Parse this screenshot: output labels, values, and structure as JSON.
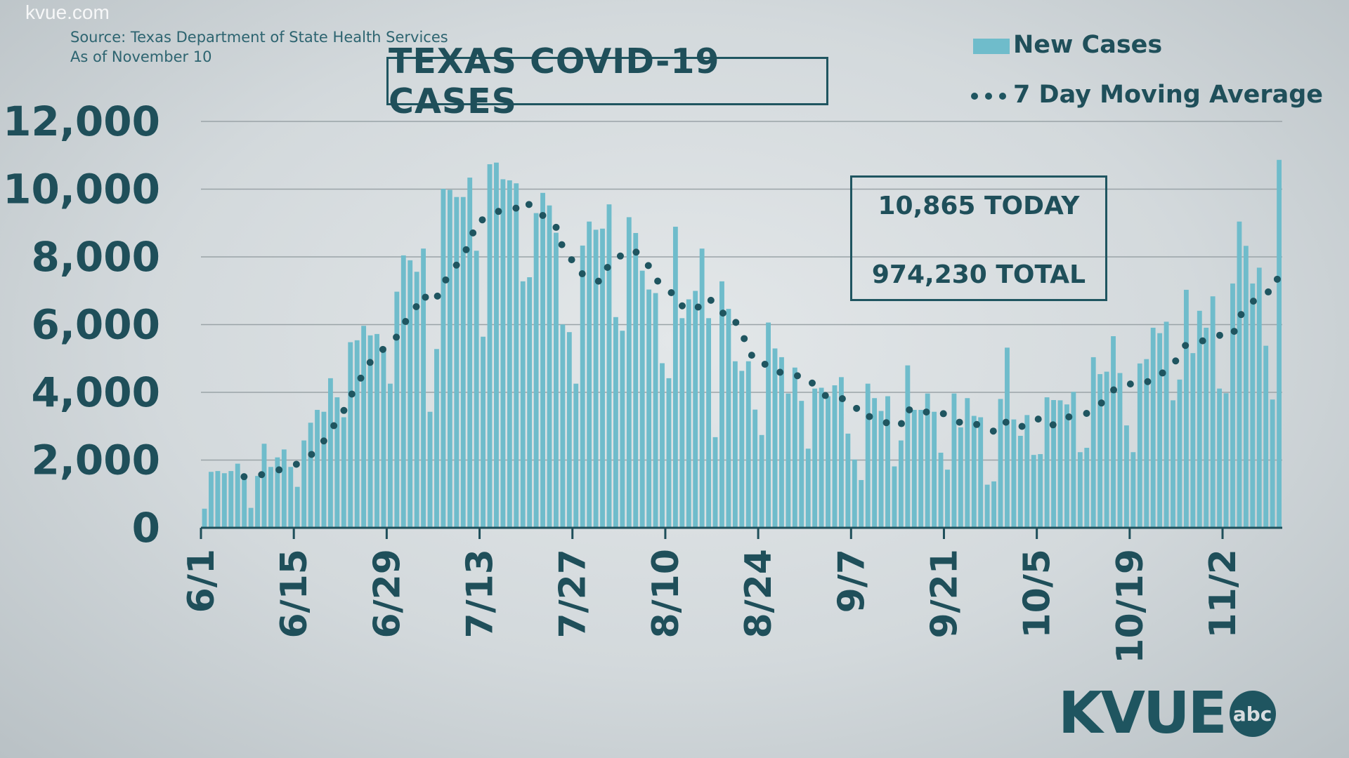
{
  "watermark": "kvue.com",
  "source_line1": "Source: Texas Department of State Health Services",
  "source_line2": "As of November 10",
  "logo": {
    "text": "KVUE",
    "badge": "abc"
  },
  "info_box": {
    "today": "10,865 TODAY",
    "total": "974,230 TOTAL"
  },
  "colors": {
    "bars": "#6fbccb",
    "average": "#1f5560",
    "text": "#1f4f5a"
  },
  "chart_data": {
    "type": "bar",
    "title": "TEXAS COVID-19 CASES",
    "xlabel": "",
    "ylabel": "",
    "ylim": [
      0,
      12000
    ],
    "grid": true,
    "legend_placement": "top-right",
    "y_ticks": [
      "0",
      "2,000",
      "4,000",
      "6,000",
      "8,000",
      "10,000",
      "12,000"
    ],
    "x_start": "6/1",
    "x_end": "11/10",
    "x_ticks": [
      "6/1",
      "6/15",
      "6/29",
      "7/13",
      "7/27",
      "8/10",
      "8/24",
      "9/7",
      "9/21",
      "10/5",
      "10/19",
      "11/2"
    ],
    "series": [
      {
        "name": "New Cases",
        "type": "bar",
        "values": [
          564,
          1652,
          1676,
          1612,
          1676,
          1894,
          1491,
          588,
          1531,
          2482,
          1797,
          2079,
          2313,
          1797,
          1209,
          2579,
          3103,
          3482,
          3426,
          4417,
          3853,
          3264,
          5481,
          5537,
          5964,
          5682,
          5723,
          5336,
          4256,
          6972,
          8044,
          7899,
          7560,
          8245,
          3426,
          5279,
          10010,
          9978,
          9768,
          9768,
          10341,
          8181,
          5643,
          10736,
          10784,
          10292,
          10260,
          10172,
          7278,
          7399,
          9293,
          9890,
          9519,
          8713,
          6004,
          5778,
          4256,
          8334,
          9043,
          8801,
          8834,
          9551,
          6222,
          5819,
          9172,
          8705,
          7593,
          7036,
          6931,
          4860,
          4417,
          8890,
          6190,
          6746,
          6996,
          8245,
          6190,
          2676,
          7278,
          6464,
          4917,
          4634,
          4917,
          3490,
          2740,
          6061,
          5296,
          5038,
          3966,
          4731,
          3748,
          2337,
          4111,
          4135,
          3885,
          4207,
          4449,
          2781,
          2015,
          1410,
          4256,
          3829,
          3450,
          3885,
          1813,
          2579,
          4796,
          3482,
          3482,
          3966,
          3426,
          2217,
          1717,
          3966,
          2966,
          3829,
          3305,
          3264,
          1273,
          1370,
          3804,
          5320,
          3200,
          2716,
          3329,
          2152,
          2176,
          3853,
          3772,
          3764,
          3643,
          4014,
          2233,
          2362,
          5038,
          4538,
          4610,
          5658,
          4570,
          3023,
          2233,
          4852,
          4981,
          5908,
          5747,
          6085,
          3764,
          4377,
          7028,
          5158,
          6408,
          5908,
          6835,
          4111,
          3974,
          7214,
          9043,
          8326,
          7214,
          7681,
          5376,
          3788,
          10865
        ]
      },
      {
        "name": "7 Day Moving Average",
        "type": "line",
        "style": "dotted",
        "window_days": 7
      }
    ]
  }
}
